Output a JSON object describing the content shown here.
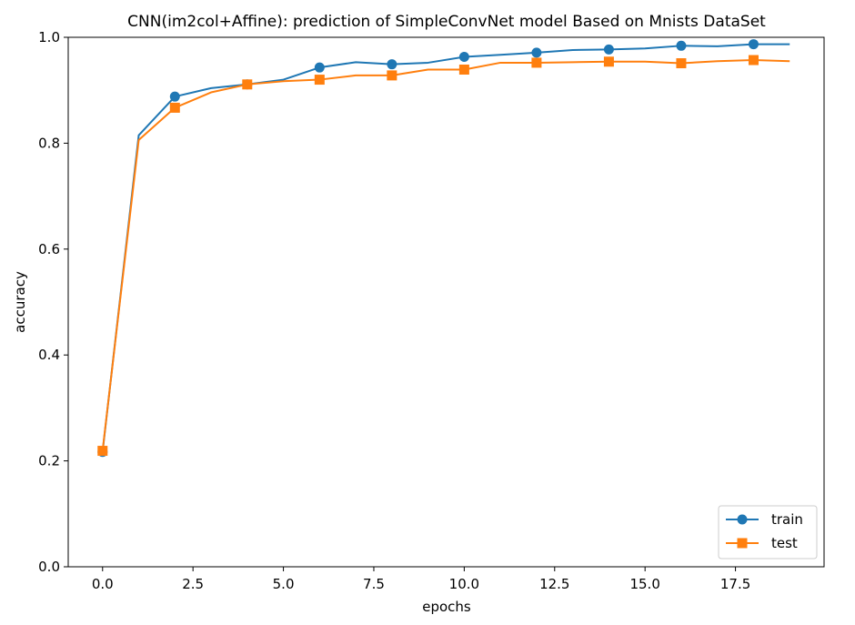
{
  "chart_data": {
    "type": "line",
    "title": "CNN(im2col+Affine): prediction of SimpleConvNet model Based on Mnists DataSet",
    "xlabel": "epochs",
    "ylabel": "accuracy",
    "xlim": [
      -0.95,
      19.95
    ],
    "ylim": [
      0.0,
      1.0
    ],
    "x": [
      0,
      1,
      2,
      3,
      4,
      5,
      6,
      7,
      8,
      9,
      10,
      11,
      12,
      13,
      14,
      15,
      16,
      17,
      18,
      19
    ],
    "xticks": [
      0.0,
      2.5,
      5.0,
      7.5,
      10.0,
      12.5,
      15.0,
      17.5
    ],
    "xtick_labels": [
      "0.0",
      "2.5",
      "5.0",
      "7.5",
      "10.0",
      "12.5",
      "15.0",
      "17.5"
    ],
    "yticks": [
      0.0,
      0.2,
      0.4,
      0.6,
      0.8,
      1.0
    ],
    "ytick_labels": [
      "0.0",
      "0.2",
      "0.4",
      "0.6",
      "0.8",
      "1.0"
    ],
    "legend_position": "lower-right",
    "grid": false,
    "series": [
      {
        "name": "train",
        "color": "#1f77b4",
        "marker": "circle",
        "markevery": 2,
        "values": [
          0.217,
          0.815,
          0.888,
          0.904,
          0.911,
          0.92,
          0.943,
          0.953,
          0.949,
          0.952,
          0.963,
          0.967,
          0.971,
          0.976,
          0.977,
          0.979,
          0.984,
          0.983,
          0.987,
          0.987
        ]
      },
      {
        "name": "test",
        "color": "#ff7f0e",
        "marker": "square",
        "markevery": 2,
        "values": [
          0.219,
          0.806,
          0.867,
          0.896,
          0.911,
          0.917,
          0.92,
          0.928,
          0.928,
          0.939,
          0.939,
          0.952,
          0.952,
          0.953,
          0.954,
          0.954,
          0.951,
          0.955,
          0.957,
          0.955
        ]
      }
    ]
  }
}
